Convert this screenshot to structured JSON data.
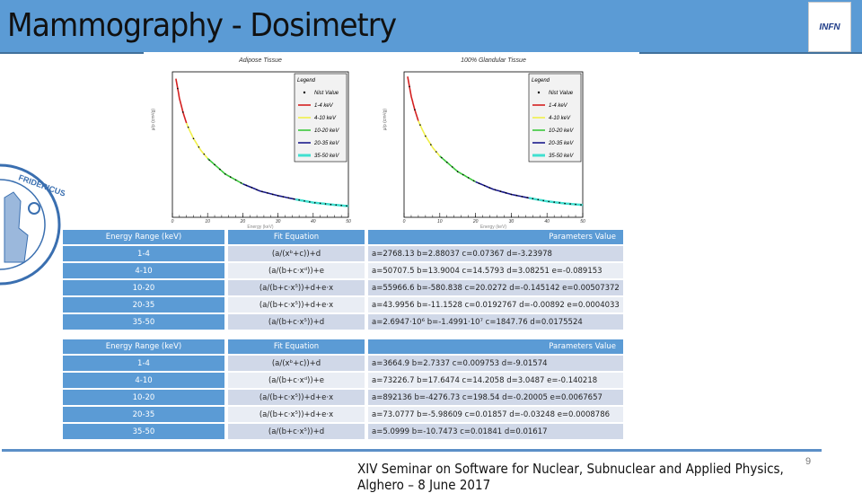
{
  "header": {
    "title": "Mammography - Dosimetry",
    "logo_text": "INFN",
    "crest_text": "FRIDERICUS IMPERATOR"
  },
  "chart_data": [
    {
      "type": "line",
      "title": "Adipose Tissue",
      "xlabel": "Energy (keV)",
      "ylabel": "μ/ρ (cm²/g)",
      "yscale": "log",
      "xlim": [
        0,
        50
      ],
      "ylim": [
        0.1,
        5000
      ],
      "x_ticks": [
        "0",
        "10",
        "20",
        "30",
        "40",
        "50"
      ],
      "legend": {
        "title": "Legend",
        "placement": "top-right",
        "entries": [
          "Nist Value",
          "1-4 keV",
          "4-10 keV",
          "10-20 keV",
          "20-35 keV",
          "35-50 keV"
        ]
      },
      "x": [
        1,
        2,
        3,
        4,
        5,
        6,
        8,
        10,
        15,
        20,
        25,
        30,
        35,
        40,
        45,
        50
      ],
      "y": [
        3000,
        700,
        250,
        110,
        60,
        35,
        15,
        8,
        2.5,
        1.2,
        0.7,
        0.5,
        0.38,
        0.3,
        0.26,
        0.23
      ]
    },
    {
      "type": "line",
      "title": "100% Glandular Tissue",
      "xlabel": "Energy (keV)",
      "ylabel": "μ/ρ (cm²/g)",
      "yscale": "log",
      "xlim": [
        0,
        50
      ],
      "ylim": [
        0.1,
        5000
      ],
      "x_ticks": [
        "0",
        "10",
        "20",
        "30",
        "40",
        "50"
      ],
      "legend": {
        "title": "Legend",
        "placement": "top-right",
        "entries": [
          "Nist Value",
          "1-4 keV",
          "4-10 keV",
          "10-20 keV",
          "20-35 keV",
          "35-50 keV"
        ]
      },
      "x": [
        1,
        2,
        3,
        4,
        5,
        6,
        8,
        10,
        15,
        20,
        25,
        30,
        35,
        40,
        45,
        50
      ],
      "y": [
        3500,
        800,
        300,
        130,
        72,
        42,
        18,
        9.5,
        3,
        1.4,
        0.8,
        0.55,
        0.42,
        0.33,
        0.28,
        0.25
      ]
    }
  ],
  "series_colors": [
    "#d42020",
    "#f0f04a",
    "#3cc83c",
    "#1a1a8c",
    "#40e0d0"
  ],
  "table1": {
    "headers": [
      "Energy Range (keV)",
      "Fit Equation",
      "Parameters Value"
    ],
    "rows": [
      [
        "1-4",
        "(a/(xᵇ+c))+d",
        "a=2768.13 b=2.88037 c=0.07367 d=-3.23978"
      ],
      [
        "4-10",
        "(a/(b+c·xᵈ))+e",
        "a=50707.5 b=13.9004 c=14.5793 d=3.08251 e=-0.089153"
      ],
      [
        "10-20",
        "(a/(b+c·x⁵))+d+e·x",
        "a=55966.6 b=-580.838 c=20.0272 d=-0.145142 e=0.00507372"
      ],
      [
        "20-35",
        "(a/(b+c·x⁵))+d+e·x",
        "a=43.9956 b=-11.1528 c=0.0192767 d=-0.00892 e=0.0004033"
      ],
      [
        "35-50",
        "(a/(b+c·x⁵))+d",
        "a=2.6947·10⁶ b=-1.4991·10⁷ c=1847.76 d=0.0175524"
      ]
    ]
  },
  "table2": {
    "headers": [
      "Energy Range (keV)",
      "Fit Equation",
      "Parameters Value"
    ],
    "rows": [
      [
        "1-4",
        "(a/(xᵇ+c))+d",
        "a=3664.9 b=2.7337  c=0.009753  d=-9.01574"
      ],
      [
        "4-10",
        "(a/(b+c·xᵈ))+e",
        "a=73226.7 b=17.6474 c=14.2058 d=3.0487  e=-0.140218"
      ],
      [
        "10-20",
        "(a/(b+c·x⁵))+d+e·x",
        "a=892136 b=-4276.73  c=198.54 d=-0.20005 e=0.0067657"
      ],
      [
        "20-35",
        "(a/(b+c·x⁵))+d+e·x",
        "a=73.0777 b=-5.98609  c=0.01857  d=-0.03248 e=0.0008786"
      ],
      [
        "35-50",
        "(a/(b+c·x⁵))+d",
        "a=5.0999 b=-10.7473  c=0.01841 d=0.01617"
      ]
    ]
  },
  "footer": {
    "text": "XIV Seminar on Software for Nuclear, Subnuclear and Applied Physics, Alghero – 8 June 2017",
    "page": "9"
  }
}
